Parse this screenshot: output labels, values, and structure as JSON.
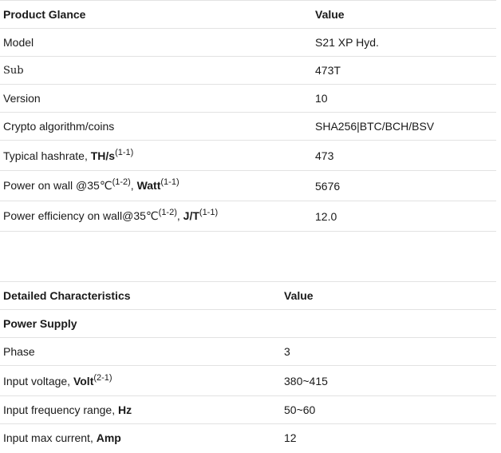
{
  "glance": {
    "header": {
      "label": "Product Glance",
      "value": "Value"
    },
    "model": {
      "label": "Model",
      "value": "S21 XP Hyd."
    },
    "sub": {
      "label": "Sub",
      "value": "473T"
    },
    "version": {
      "label": "Version",
      "value": "10"
    },
    "algorithm": {
      "label": "Crypto algorithm/coins",
      "value": "SHA256|BTC/BCH/BSV"
    },
    "hashrate": {
      "label": "Typical hashrate, ",
      "unit": "TH/s",
      "note": "(1-1)",
      "value": "473"
    },
    "power": {
      "label": "Power on wall @35℃",
      "note1": "(1-2)",
      "sep": ", ",
      "unit": "Watt",
      "note2": "(1-1)",
      "value": "5676"
    },
    "efficiency": {
      "label": "Power efficiency on wall@35℃",
      "note1": "(1-2)",
      "sep": ", ",
      "unit": "J/T",
      "note2": "(1-1)",
      "value": "12.0"
    }
  },
  "details": {
    "header": {
      "label": "Detailed Characteristics",
      "value": "Value"
    },
    "section": "Power Supply",
    "phase": {
      "label": "Phase",
      "value": "3"
    },
    "input_voltage": {
      "label": "Input voltage, ",
      "unit": "Volt",
      "note": "(2-1)",
      "value": "380~415"
    },
    "input_frequency": {
      "label": "Input frequency range, ",
      "unit": "Hz",
      "value": "50~60"
    },
    "input_current": {
      "label": "Input max current, ",
      "unit": "Amp",
      "value": "12"
    }
  }
}
